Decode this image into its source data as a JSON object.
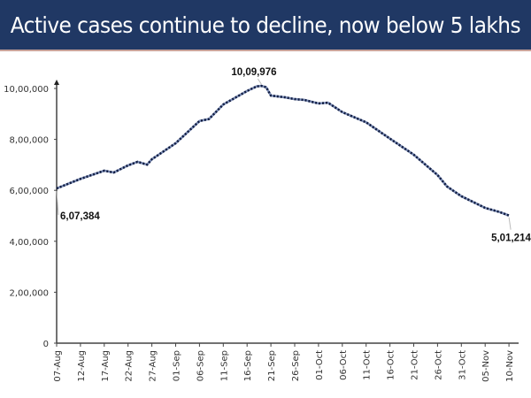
{
  "header": {
    "title": "Active cases continue to decline, now below 5 lakhs",
    "background": "#203864"
  },
  "chart_data": {
    "type": "line",
    "title": "Active cases continue to decline, now below 5 lakhs",
    "xlabel": "",
    "ylabel": "",
    "ylim": [
      0,
      1000000
    ],
    "y_ticks": [
      "0",
      "2,00,000",
      "4,00,000",
      "6,00,000",
      "8,00,000",
      "10,00,000"
    ],
    "y_tick_values": [
      0,
      200000,
      400000,
      600000,
      800000,
      1000000
    ],
    "x_ticks": [
      "07-Aug",
      "12-Aug",
      "17-Aug",
      "22-Aug",
      "27-Aug",
      "01-Sep",
      "06-Sep",
      "11-Sep",
      "16-Sep",
      "21-Sep",
      "26-Sep",
      "01-Oct",
      "06-Oct",
      "11-Oct",
      "16-Oct",
      "21-Oct",
      "26-Oct",
      "31-Oct",
      "05-Nov",
      "10-Nov"
    ],
    "grid": false,
    "line_color": "#1f2f5c",
    "line_style": "dotted",
    "points": [
      [
        "07-Aug",
        607384
      ],
      [
        "12-Aug",
        645000
      ],
      [
        "17-Aug",
        677000
      ],
      [
        "19-Aug",
        670000
      ],
      [
        "22-Aug",
        698000
      ],
      [
        "24-Aug",
        712000
      ],
      [
        "26-Aug",
        701000
      ],
      [
        "27-Aug",
        722000
      ],
      [
        "01-Sep",
        785000
      ],
      [
        "06-Sep",
        872000
      ],
      [
        "08-Sep",
        880000
      ],
      [
        "11-Sep",
        937000
      ],
      [
        "16-Sep",
        990000
      ],
      [
        "18-Sep",
        1008000
      ],
      [
        "19-Sep",
        1009976
      ],
      [
        "20-Sep",
        1005000
      ],
      [
        "21-Sep",
        972000
      ],
      [
        "24-Sep",
        965000
      ],
      [
        "26-Sep",
        958000
      ],
      [
        "28-Sep",
        955000
      ],
      [
        "01-Oct",
        941000
      ],
      [
        "03-Oct",
        944000
      ],
      [
        "06-Oct",
        907000
      ],
      [
        "11-Oct",
        867000
      ],
      [
        "16-Oct",
        803000
      ],
      [
        "21-Oct",
        740000
      ],
      [
        "26-Oct",
        660000
      ],
      [
        "28-Oct",
        615000
      ],
      [
        "31-Oct",
        577000
      ],
      [
        "05-Nov",
        531000
      ],
      [
        "08-Nov",
        515000
      ],
      [
        "10-Nov",
        501214
      ]
    ],
    "annotations": [
      {
        "date": "07-Aug",
        "label": "6,07,384"
      },
      {
        "date": "19-Sep",
        "label": "10,09,976"
      },
      {
        "date": "10-Nov",
        "label": "5,01,214"
      }
    ]
  }
}
